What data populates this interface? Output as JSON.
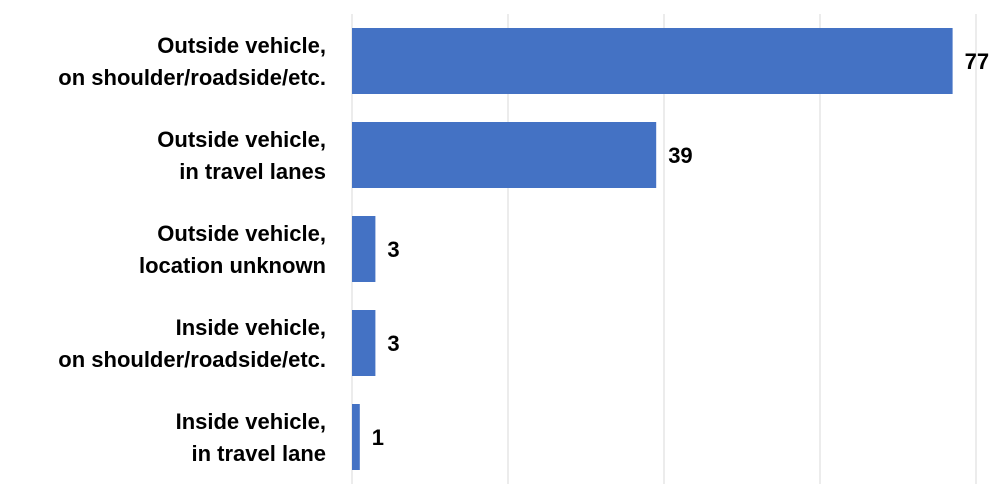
{
  "chart_data": {
    "type": "bar",
    "orientation": "horizontal",
    "categories": [
      [
        "Outside vehicle,",
        "on shoulder/roadside/etc."
      ],
      [
        "Outside vehicle,",
        "in travel lanes"
      ],
      [
        "Outside vehicle,",
        "location unknown"
      ],
      [
        "Inside vehicle,",
        "on shoulder/roadside/etc."
      ],
      [
        "Inside vehicle,",
        "in travel lane"
      ]
    ],
    "values": [
      77,
      39,
      3,
      3,
      1
    ],
    "data_labels": [
      "77",
      "39",
      "3",
      "3",
      "1"
    ],
    "xlim": [
      0,
      80
    ],
    "grid": "vertical",
    "legend": "none",
    "colors": {
      "bar": "#4472C4",
      "grid": "#D9D9D9",
      "text": "#000000"
    }
  }
}
